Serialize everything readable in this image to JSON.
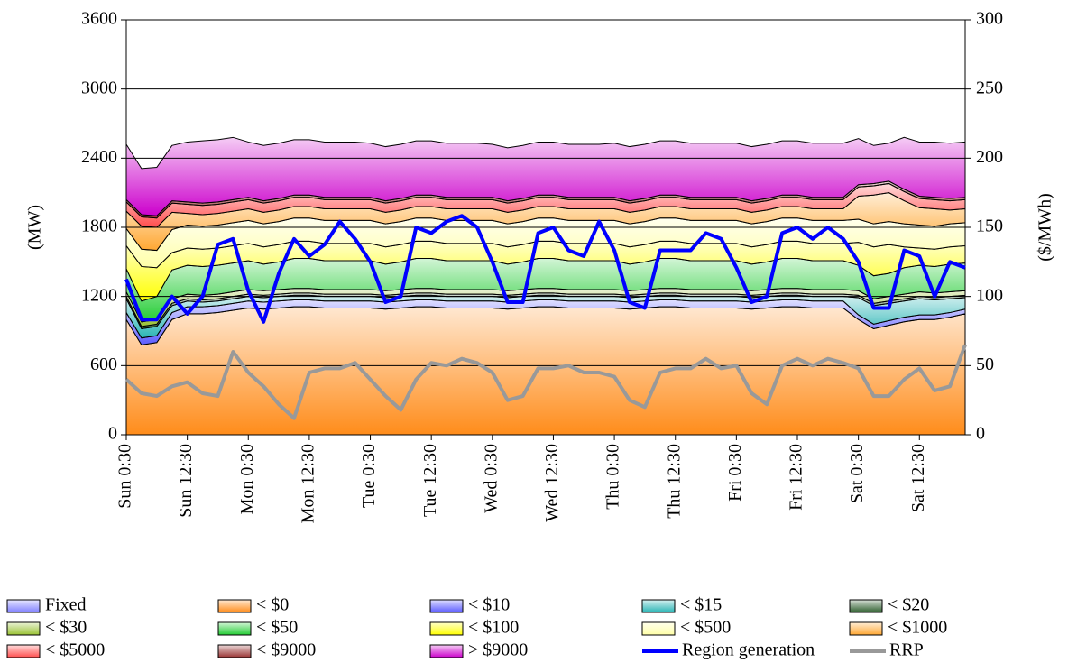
{
  "chart_data": {
    "type": "area",
    "y_label": "(MW)",
    "y2_label": "($/MWh)",
    "categories": [
      "Sun 0:30",
      null,
      null,
      null,
      "Sun 12:30",
      null,
      null,
      null,
      "Mon 0:30",
      null,
      null,
      null,
      "Mon 12:30",
      null,
      null,
      null,
      "Tue 0:30",
      null,
      null,
      null,
      "Tue 12:30",
      null,
      null,
      null,
      "Wed 0:30",
      null,
      null,
      null,
      "Wed 12:30",
      null,
      null,
      null,
      "Thu 0:30",
      null,
      null,
      null,
      "Thu 12:30",
      null,
      null,
      null,
      "Fri 0:30",
      null,
      null,
      null,
      "Fri 12:30",
      null,
      null,
      null,
      "Sat 0:30",
      null,
      null,
      null,
      "Sat 12:30",
      null,
      null,
      null
    ],
    "ylim": [
      0,
      3600
    ],
    "yticks": [
      0,
      600,
      1200,
      1800,
      2400,
      3000,
      3600
    ],
    "y2lim": [
      0,
      300
    ],
    "y2ticks": [
      0,
      50,
      100,
      150,
      200,
      250,
      300
    ],
    "grid": true,
    "series": [
      {
        "name": "Fixed",
        "color": "#8080ff",
        "values": [
          0,
          0,
          0,
          0,
          0,
          0,
          0,
          0,
          0,
          0,
          0,
          0,
          0,
          0,
          0,
          0,
          0,
          0,
          0,
          0,
          0,
          0,
          0,
          0,
          0,
          0,
          0,
          0,
          0,
          0,
          0,
          0,
          0,
          0,
          0,
          0,
          0,
          0,
          0,
          0,
          0,
          0,
          0,
          0,
          0,
          0,
          0,
          0,
          0,
          0,
          0,
          0,
          0,
          0,
          0,
          0
        ]
      },
      {
        "name": "< $0",
        "color": "#ff8c1a",
        "values": [
          1000,
          780,
          800,
          1000,
          1050,
          1050,
          1060,
          1080,
          1100,
          1090,
          1100,
          1110,
          1110,
          1100,
          1100,
          1100,
          1100,
          1090,
          1100,
          1110,
          1110,
          1100,
          1100,
          1100,
          1100,
          1090,
          1100,
          1110,
          1110,
          1100,
          1100,
          1100,
          1100,
          1090,
          1100,
          1110,
          1110,
          1100,
          1100,
          1100,
          1100,
          1090,
          1100,
          1110,
          1110,
          1100,
          1100,
          1100,
          1000,
          920,
          950,
          980,
          1000,
          1000,
          1020,
          1050
        ]
      },
      {
        "name": "< $10",
        "color": "#5c5cff",
        "values": [
          60,
          60,
          60,
          60,
          60,
          60,
          60,
          60,
          60,
          60,
          60,
          60,
          60,
          60,
          60,
          60,
          60,
          60,
          60,
          60,
          60,
          60,
          60,
          60,
          60,
          60,
          60,
          60,
          60,
          60,
          60,
          60,
          60,
          60,
          60,
          60,
          60,
          60,
          60,
          60,
          60,
          60,
          60,
          60,
          60,
          60,
          60,
          60,
          40,
          40,
          40,
          40,
          40,
          40,
          40,
          40
        ]
      },
      {
        "name": "< $15",
        "color": "#2ab5b5",
        "values": [
          120,
          80,
          80,
          60,
          50,
          40,
          40,
          40,
          40,
          40,
          40,
          40,
          40,
          40,
          40,
          40,
          40,
          40,
          40,
          40,
          40,
          40,
          40,
          40,
          40,
          40,
          40,
          40,
          40,
          40,
          40,
          40,
          40,
          40,
          40,
          40,
          40,
          40,
          40,
          40,
          40,
          40,
          40,
          40,
          40,
          40,
          40,
          40,
          150,
          160,
          150,
          140,
          140,
          130,
          120,
          100
        ]
      },
      {
        "name": "< $20",
        "color": "#2f5f2f",
        "values": [
          20,
          20,
          20,
          20,
          20,
          20,
          20,
          20,
          20,
          20,
          20,
          20,
          20,
          20,
          20,
          20,
          20,
          20,
          20,
          20,
          20,
          20,
          20,
          20,
          20,
          20,
          20,
          20,
          20,
          20,
          20,
          20,
          20,
          20,
          20,
          20,
          20,
          20,
          20,
          20,
          20,
          20,
          20,
          20,
          20,
          20,
          20,
          20,
          20,
          20,
          20,
          20,
          20,
          20,
          20,
          20
        ]
      },
      {
        "name": "< $30",
        "color": "#99c233",
        "values": [
          40,
          40,
          40,
          40,
          40,
          40,
          40,
          40,
          40,
          40,
          40,
          40,
          40,
          40,
          40,
          40,
          40,
          40,
          40,
          40,
          40,
          40,
          40,
          40,
          40,
          40,
          40,
          40,
          40,
          40,
          40,
          40,
          40,
          40,
          40,
          40,
          40,
          40,
          40,
          40,
          40,
          40,
          40,
          40,
          40,
          40,
          40,
          40,
          40,
          40,
          40,
          40,
          40,
          40,
          40,
          40
        ]
      },
      {
        "name": "< $50",
        "color": "#22cc33",
        "values": [
          200,
          180,
          200,
          250,
          250,
          250,
          250,
          250,
          250,
          230,
          240,
          260,
          260,
          250,
          250,
          250,
          250,
          230,
          240,
          260,
          260,
          250,
          250,
          250,
          250,
          230,
          240,
          260,
          260,
          250,
          250,
          250,
          250,
          230,
          240,
          260,
          260,
          250,
          250,
          250,
          250,
          230,
          240,
          260,
          260,
          250,
          250,
          250,
          220,
          200,
          200,
          230,
          230,
          230,
          240,
          240
        ]
      },
      {
        "name": "< $100",
        "color": "#ffff00",
        "values": [
          200,
          300,
          250,
          150,
          150,
          150,
          150,
          150,
          150,
          150,
          150,
          150,
          150,
          150,
          150,
          150,
          150,
          150,
          150,
          150,
          150,
          150,
          150,
          150,
          150,
          150,
          150,
          150,
          150,
          150,
          150,
          150,
          150,
          150,
          150,
          150,
          150,
          150,
          150,
          150,
          150,
          150,
          150,
          150,
          150,
          150,
          150,
          150,
          200,
          250,
          250,
          180,
          150,
          150,
          150,
          150
        ]
      },
      {
        "name": "< $500",
        "color": "#ffffa8",
        "values": [
          150,
          150,
          150,
          200,
          200,
          200,
          200,
          200,
          200,
          200,
          200,
          200,
          200,
          200,
          200,
          200,
          200,
          200,
          200,
          200,
          200,
          200,
          200,
          200,
          200,
          200,
          200,
          200,
          200,
          200,
          200,
          200,
          200,
          200,
          200,
          200,
          200,
          200,
          200,
          200,
          200,
          200,
          200,
          200,
          200,
          200,
          200,
          200,
          200,
          200,
          200,
          200,
          200,
          200,
          200,
          200
        ]
      },
      {
        "name": "< $1000",
        "color": "#ffa833",
        "values": [
          150,
          200,
          200,
          150,
          100,
          100,
          100,
          100,
          100,
          100,
          100,
          100,
          100,
          100,
          100,
          100,
          100,
          100,
          100,
          100,
          100,
          100,
          100,
          100,
          100,
          100,
          100,
          100,
          100,
          100,
          100,
          100,
          100,
          100,
          100,
          100,
          100,
          100,
          100,
          100,
          100,
          100,
          100,
          100,
          100,
          100,
          100,
          100,
          200,
          250,
          250,
          200,
          150,
          150,
          120,
          120
        ]
      },
      {
        "name": "< $5000",
        "color": "#ff4d4d",
        "values": [
          80,
          80,
          80,
          80,
          80,
          80,
          80,
          80,
          80,
          80,
          80,
          80,
          80,
          80,
          80,
          80,
          80,
          80,
          80,
          80,
          80,
          80,
          80,
          80,
          80,
          80,
          80,
          80,
          80,
          80,
          80,
          80,
          80,
          80,
          80,
          80,
          80,
          80,
          80,
          80,
          80,
          80,
          80,
          80,
          80,
          80,
          80,
          80,
          80,
          80,
          80,
          80,
          80,
          80,
          80,
          80
        ]
      },
      {
        "name": "< $9000",
        "color": "#993333",
        "values": [
          20,
          20,
          20,
          20,
          20,
          20,
          20,
          20,
          20,
          20,
          20,
          20,
          20,
          20,
          20,
          20,
          20,
          20,
          20,
          20,
          20,
          20,
          20,
          20,
          20,
          20,
          20,
          20,
          20,
          20,
          20,
          20,
          20,
          20,
          20,
          20,
          20,
          20,
          20,
          20,
          20,
          20,
          20,
          20,
          20,
          20,
          20,
          20,
          20,
          20,
          20,
          20,
          20,
          20,
          20,
          20
        ]
      },
      {
        "name": "> $9000",
        "color": "#cc00cc",
        "values": [
          480,
          400,
          420,
          480,
          520,
          540,
          540,
          540,
          480,
          480,
          480,
          480,
          480,
          480,
          480,
          480,
          470,
          470,
          470,
          470,
          470,
          470,
          470,
          470,
          460,
          460,
          460,
          460,
          460,
          460,
          460,
          460,
          470,
          470,
          470,
          470,
          470,
          470,
          470,
          470,
          470,
          470,
          470,
          470,
          470,
          470,
          470,
          470,
          400,
          330,
          330,
          450,
          470,
          480,
          480,
          480
        ]
      },
      {
        "name": "Region generation",
        "type": "line",
        "color": "#0000ff",
        "values": [
          1350,
          1000,
          1000,
          1200,
          1050,
          1200,
          1650,
          1700,
          1250,
          980,
          1400,
          1700,
          1550,
          1650,
          1850,
          1700,
          1500,
          1150,
          1200,
          1800,
          1750,
          1850,
          1900,
          1800,
          1500,
          1150,
          1150,
          1750,
          1800,
          1600,
          1550,
          1850,
          1600,
          1150,
          1100,
          1600,
          1600,
          1600,
          1750,
          1700,
          1450,
          1150,
          1200,
          1750,
          1800,
          1700,
          1800,
          1700,
          1500,
          1100,
          1100,
          1600,
          1550,
          1200,
          1500,
          1450
        ]
      },
      {
        "name": "RRP",
        "type": "line",
        "axis": "y2",
        "color": "#999999",
        "values": [
          40,
          30,
          28,
          35,
          38,
          30,
          28,
          60,
          45,
          35,
          22,
          12,
          45,
          48,
          48,
          52,
          40,
          28,
          18,
          40,
          52,
          50,
          55,
          52,
          45,
          25,
          28,
          48,
          48,
          50,
          45,
          45,
          42,
          25,
          20,
          45,
          48,
          48,
          55,
          48,
          50,
          30,
          22,
          50,
          55,
          50,
          55,
          52,
          48,
          28,
          28,
          40,
          48,
          32,
          35,
          65
        ]
      }
    ]
  }
}
